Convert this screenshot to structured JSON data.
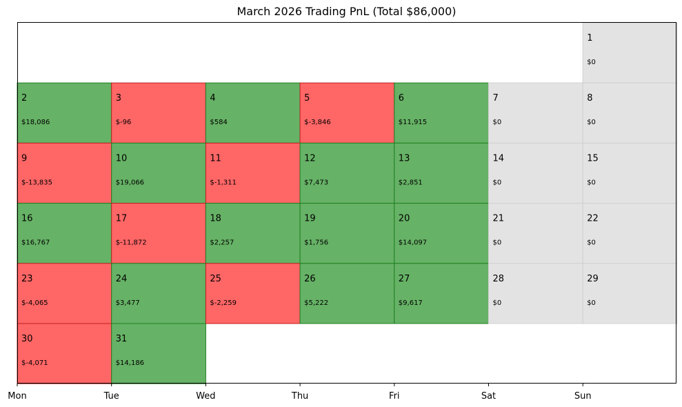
{
  "chart_data": {
    "type": "heatmap",
    "title": "March 2026 Trading PnL (Total $86,000)",
    "x_ticks": [
      "Mon",
      "Tue",
      "Wed",
      "Thu",
      "Fri",
      "Sat",
      "Sun"
    ],
    "days": [
      {
        "day": 1,
        "weekday": 6,
        "week": 0,
        "label": "$0",
        "status": "zero"
      },
      {
        "day": 2,
        "weekday": 0,
        "week": 1,
        "label": "$18,086",
        "status": "positive"
      },
      {
        "day": 3,
        "weekday": 1,
        "week": 1,
        "label": "$-96",
        "status": "negative"
      },
      {
        "day": 4,
        "weekday": 2,
        "week": 1,
        "label": "$584",
        "status": "positive"
      },
      {
        "day": 5,
        "weekday": 3,
        "week": 1,
        "label": "$-3,846",
        "status": "negative"
      },
      {
        "day": 6,
        "weekday": 4,
        "week": 1,
        "label": "$11,915",
        "status": "positive"
      },
      {
        "day": 7,
        "weekday": 5,
        "week": 1,
        "label": "$0",
        "status": "zero"
      },
      {
        "day": 8,
        "weekday": 6,
        "week": 1,
        "label": "$0",
        "status": "zero"
      },
      {
        "day": 9,
        "weekday": 0,
        "week": 2,
        "label": "$-13,835",
        "status": "negative"
      },
      {
        "day": 10,
        "weekday": 1,
        "week": 2,
        "label": "$19,066",
        "status": "positive"
      },
      {
        "day": 11,
        "weekday": 2,
        "week": 2,
        "label": "$-1,311",
        "status": "negative"
      },
      {
        "day": 12,
        "weekday": 3,
        "week": 2,
        "label": "$7,473",
        "status": "positive"
      },
      {
        "day": 13,
        "weekday": 4,
        "week": 2,
        "label": "$2,851",
        "status": "positive"
      },
      {
        "day": 14,
        "weekday": 5,
        "week": 2,
        "label": "$0",
        "status": "zero"
      },
      {
        "day": 15,
        "weekday": 6,
        "week": 2,
        "label": "$0",
        "status": "zero"
      },
      {
        "day": 16,
        "weekday": 0,
        "week": 3,
        "label": "$16,767",
        "status": "positive"
      },
      {
        "day": 17,
        "weekday": 1,
        "week": 3,
        "label": "$-11,872",
        "status": "negative"
      },
      {
        "day": 18,
        "weekday": 2,
        "week": 3,
        "label": "$2,257",
        "status": "positive"
      },
      {
        "day": 19,
        "weekday": 3,
        "week": 3,
        "label": "$1,756",
        "status": "positive"
      },
      {
        "day": 20,
        "weekday": 4,
        "week": 3,
        "label": "$14,097",
        "status": "positive"
      },
      {
        "day": 21,
        "weekday": 5,
        "week": 3,
        "label": "$0",
        "status": "zero"
      },
      {
        "day": 22,
        "weekday": 6,
        "week": 3,
        "label": "$0",
        "status": "zero"
      },
      {
        "day": 23,
        "weekday": 0,
        "week": 4,
        "label": "$-4,065",
        "status": "negative"
      },
      {
        "day": 24,
        "weekday": 1,
        "week": 4,
        "label": "$3,477",
        "status": "positive"
      },
      {
        "day": 25,
        "weekday": 2,
        "week": 4,
        "label": "$-2,259",
        "status": "negative"
      },
      {
        "day": 26,
        "weekday": 3,
        "week": 4,
        "label": "$5,222",
        "status": "positive"
      },
      {
        "day": 27,
        "weekday": 4,
        "week": 4,
        "label": "$9,617",
        "status": "positive"
      },
      {
        "day": 28,
        "weekday": 5,
        "week": 4,
        "label": "$0",
        "status": "zero"
      },
      {
        "day": 29,
        "weekday": 6,
        "week": 4,
        "label": "$0",
        "status": "zero"
      },
      {
        "day": 30,
        "weekday": 0,
        "week": 5,
        "label": "$-4,071",
        "status": "negative"
      },
      {
        "day": 31,
        "weekday": 1,
        "week": 5,
        "label": "$14,186",
        "status": "positive"
      }
    ],
    "colors": {
      "positive": "#66b266",
      "positive_edge": "#1f801f",
      "negative": "#ff6666",
      "negative_edge": "#c02020",
      "zero": "#e3e3e3",
      "zero_edge": "#d0d0d0"
    }
  }
}
